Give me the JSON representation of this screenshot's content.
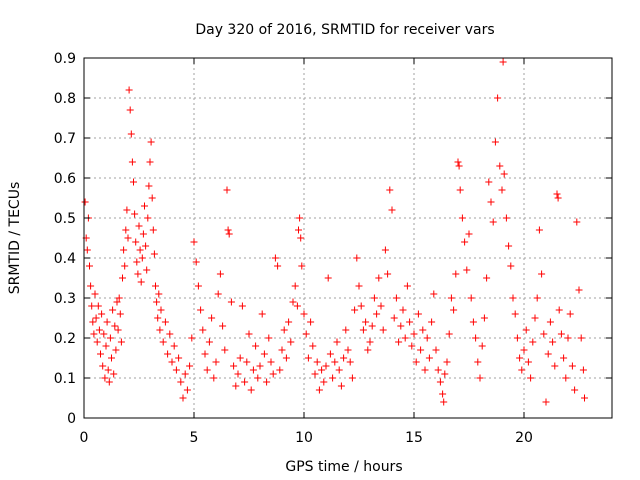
{
  "chart_data": {
    "type": "scatter",
    "title": "Day 320 of 2016, SRMTID for receiver vars",
    "xlabel": "GPS time / hours",
    "ylabel": "SRMTID / TECUs",
    "xlim": [
      0,
      24
    ],
    "ylim": [
      0,
      0.9
    ],
    "x_ticks": [
      0,
      5,
      10,
      15,
      20
    ],
    "x_tick_labels": [
      "0",
      "5",
      "10",
      "15",
      "20"
    ],
    "y_ticks": [
      0,
      0.1,
      0.2,
      0.3,
      0.4,
      0.5,
      0.6,
      0.7,
      0.8,
      0.9
    ],
    "y_tick_labels": [
      "0",
      "0.1",
      "0.2",
      "0.3",
      "0.4",
      "0.5",
      "0.6",
      "0.7",
      "0.8",
      "0.9"
    ],
    "grid": true,
    "series": [
      {
        "name": "SRMTID",
        "marker": "+",
        "color": "#ff0000",
        "points": [
          [
            0.05,
            0.54
          ],
          [
            0.1,
            0.45
          ],
          [
            0.15,
            0.42
          ],
          [
            0.2,
            0.5
          ],
          [
            0.25,
            0.38
          ],
          [
            0.3,
            0.33
          ],
          [
            0.35,
            0.28
          ],
          [
            0.4,
            0.24
          ],
          [
            0.45,
            0.21
          ],
          [
            0.5,
            0.31
          ],
          [
            0.55,
            0.25
          ],
          [
            0.6,
            0.19
          ],
          [
            0.65,
            0.28
          ],
          [
            0.7,
            0.22
          ],
          [
            0.75,
            0.16
          ],
          [
            0.8,
            0.26
          ],
          [
            0.85,
            0.13
          ],
          [
            0.9,
            0.21
          ],
          [
            0.95,
            0.1
          ],
          [
            1.0,
            0.18
          ],
          [
            1.05,
            0.24
          ],
          [
            1.1,
            0.12
          ],
          [
            1.15,
            0.09
          ],
          [
            1.2,
            0.2
          ],
          [
            1.25,
            0.15
          ],
          [
            1.3,
            0.27
          ],
          [
            1.35,
            0.11
          ],
          [
            1.4,
            0.23
          ],
          [
            1.45,
            0.17
          ],
          [
            1.5,
            0.29
          ],
          [
            1.55,
            0.22
          ],
          [
            1.6,
            0.3
          ],
          [
            1.65,
            0.26
          ],
          [
            1.7,
            0.19
          ],
          [
            1.75,
            0.35
          ],
          [
            1.8,
            0.42
          ],
          [
            1.85,
            0.38
          ],
          [
            1.9,
            0.47
          ],
          [
            1.95,
            0.52
          ],
          [
            2.0,
            0.45
          ],
          [
            2.05,
            0.82
          ],
          [
            2.1,
            0.77
          ],
          [
            2.15,
            0.71
          ],
          [
            2.2,
            0.64
          ],
          [
            2.25,
            0.59
          ],
          [
            2.3,
            0.51
          ],
          [
            2.35,
            0.44
          ],
          [
            2.4,
            0.39
          ],
          [
            2.45,
            0.36
          ],
          [
            2.5,
            0.48
          ],
          [
            2.55,
            0.42
          ],
          [
            2.6,
            0.34
          ],
          [
            2.65,
            0.4
          ],
          [
            2.7,
            0.46
          ],
          [
            2.75,
            0.53
          ],
          [
            2.8,
            0.43
          ],
          [
            2.85,
            0.37
          ],
          [
            2.9,
            0.5
          ],
          [
            2.95,
            0.58
          ],
          [
            3.0,
            0.64
          ],
          [
            3.05,
            0.69
          ],
          [
            3.1,
            0.55
          ],
          [
            3.15,
            0.47
          ],
          [
            3.2,
            0.41
          ],
          [
            3.25,
            0.33
          ],
          [
            3.3,
            0.29
          ],
          [
            3.35,
            0.25
          ],
          [
            3.4,
            0.31
          ],
          [
            3.45,
            0.22
          ],
          [
            3.5,
            0.27
          ],
          [
            3.6,
            0.19
          ],
          [
            3.7,
            0.24
          ],
          [
            3.8,
            0.16
          ],
          [
            3.9,
            0.21
          ],
          [
            4.0,
            0.14
          ],
          [
            4.1,
            0.18
          ],
          [
            4.2,
            0.12
          ],
          [
            4.3,
            0.15
          ],
          [
            4.4,
            0.09
          ],
          [
            4.5,
            0.05
          ],
          [
            4.6,
            0.11
          ],
          [
            4.7,
            0.07
          ],
          [
            4.8,
            0.13
          ],
          [
            4.9,
            0.2
          ],
          [
            5.0,
            0.44
          ],
          [
            5.1,
            0.39
          ],
          [
            5.2,
            0.33
          ],
          [
            5.3,
            0.27
          ],
          [
            5.4,
            0.22
          ],
          [
            5.5,
            0.16
          ],
          [
            5.6,
            0.12
          ],
          [
            5.7,
            0.19
          ],
          [
            5.8,
            0.25
          ],
          [
            5.9,
            0.1
          ],
          [
            6.0,
            0.14
          ],
          [
            6.1,
            0.31
          ],
          [
            6.2,
            0.36
          ],
          [
            6.3,
            0.23
          ],
          [
            6.4,
            0.17
          ],
          [
            6.5,
            0.57
          ],
          [
            6.55,
            0.47
          ],
          [
            6.6,
            0.46
          ],
          [
            6.7,
            0.29
          ],
          [
            6.8,
            0.13
          ],
          [
            6.9,
            0.08
          ],
          [
            7.0,
            0.11
          ],
          [
            7.1,
            0.15
          ],
          [
            7.2,
            0.28
          ],
          [
            7.3,
            0.09
          ],
          [
            7.4,
            0.14
          ],
          [
            7.5,
            0.21
          ],
          [
            7.6,
            0.07
          ],
          [
            7.7,
            0.12
          ],
          [
            7.8,
            0.18
          ],
          [
            7.9,
            0.1
          ],
          [
            8.0,
            0.13
          ],
          [
            8.1,
            0.26
          ],
          [
            8.2,
            0.16
          ],
          [
            8.3,
            0.09
          ],
          [
            8.4,
            0.2
          ],
          [
            8.5,
            0.14
          ],
          [
            8.6,
            0.11
          ],
          [
            8.7,
            0.4
          ],
          [
            8.8,
            0.38
          ],
          [
            8.9,
            0.12
          ],
          [
            9.0,
            0.17
          ],
          [
            9.1,
            0.22
          ],
          [
            9.2,
            0.15
          ],
          [
            9.3,
            0.24
          ],
          [
            9.4,
            0.19
          ],
          [
            9.5,
            0.29
          ],
          [
            9.6,
            0.33
          ],
          [
            9.7,
            0.28
          ],
          [
            9.75,
            0.47
          ],
          [
            9.8,
            0.5
          ],
          [
            9.85,
            0.45
          ],
          [
            9.9,
            0.38
          ],
          [
            10.0,
            0.26
          ],
          [
            10.1,
            0.21
          ],
          [
            10.2,
            0.15
          ],
          [
            10.3,
            0.24
          ],
          [
            10.4,
            0.18
          ],
          [
            10.5,
            0.11
          ],
          [
            10.6,
            0.14
          ],
          [
            10.7,
            0.07
          ],
          [
            10.8,
            0.12
          ],
          [
            10.9,
            0.09
          ],
          [
            11.0,
            0.13
          ],
          [
            11.1,
            0.35
          ],
          [
            11.2,
            0.16
          ],
          [
            11.3,
            0.1
          ],
          [
            11.4,
            0.14
          ],
          [
            11.5,
            0.19
          ],
          [
            11.6,
            0.12
          ],
          [
            11.7,
            0.08
          ],
          [
            11.8,
            0.15
          ],
          [
            11.9,
            0.22
          ],
          [
            12.0,
            0.17
          ],
          [
            12.1,
            0.14
          ],
          [
            12.2,
            0.1
          ],
          [
            12.3,
            0.27
          ],
          [
            12.4,
            0.4
          ],
          [
            12.5,
            0.33
          ],
          [
            12.6,
            0.28
          ],
          [
            12.7,
            0.22
          ],
          [
            12.8,
            0.24
          ],
          [
            12.9,
            0.17
          ],
          [
            13.0,
            0.19
          ],
          [
            13.1,
            0.23
          ],
          [
            13.2,
            0.3
          ],
          [
            13.3,
            0.26
          ],
          [
            13.4,
            0.35
          ],
          [
            13.5,
            0.28
          ],
          [
            13.6,
            0.22
          ],
          [
            13.7,
            0.42
          ],
          [
            13.8,
            0.36
          ],
          [
            13.9,
            0.57
          ],
          [
            14.0,
            0.52
          ],
          [
            14.1,
            0.25
          ],
          [
            14.2,
            0.3
          ],
          [
            14.3,
            0.19
          ],
          [
            14.4,
            0.23
          ],
          [
            14.5,
            0.27
          ],
          [
            14.6,
            0.2
          ],
          [
            14.7,
            0.33
          ],
          [
            14.8,
            0.24
          ],
          [
            14.9,
            0.18
          ],
          [
            15.0,
            0.21
          ],
          [
            15.1,
            0.14
          ],
          [
            15.2,
            0.26
          ],
          [
            15.3,
            0.17
          ],
          [
            15.4,
            0.22
          ],
          [
            15.5,
            0.12
          ],
          [
            15.6,
            0.2
          ],
          [
            15.7,
            0.15
          ],
          [
            15.8,
            0.24
          ],
          [
            15.9,
            0.31
          ],
          [
            16.0,
            0.17
          ],
          [
            16.1,
            0.12
          ],
          [
            16.2,
            0.09
          ],
          [
            16.3,
            0.06
          ],
          [
            16.35,
            0.04
          ],
          [
            16.4,
            0.11
          ],
          [
            16.5,
            0.14
          ],
          [
            16.6,
            0.21
          ],
          [
            16.7,
            0.3
          ],
          [
            16.8,
            0.27
          ],
          [
            16.9,
            0.36
          ],
          [
            17.0,
            0.64
          ],
          [
            17.05,
            0.63
          ],
          [
            17.1,
            0.57
          ],
          [
            17.2,
            0.5
          ],
          [
            17.3,
            0.44
          ],
          [
            17.4,
            0.37
          ],
          [
            17.5,
            0.46
          ],
          [
            17.6,
            0.3
          ],
          [
            17.7,
            0.24
          ],
          [
            17.8,
            0.2
          ],
          [
            17.9,
            0.14
          ],
          [
            18.0,
            0.1
          ],
          [
            18.1,
            0.18
          ],
          [
            18.2,
            0.25
          ],
          [
            18.3,
            0.35
          ],
          [
            18.4,
            0.59
          ],
          [
            18.5,
            0.54
          ],
          [
            18.6,
            0.49
          ],
          [
            18.7,
            0.69
          ],
          [
            18.8,
            0.8
          ],
          [
            18.9,
            0.63
          ],
          [
            19.0,
            0.57
          ],
          [
            19.05,
            0.89
          ],
          [
            19.1,
            0.61
          ],
          [
            19.2,
            0.5
          ],
          [
            19.3,
            0.43
          ],
          [
            19.4,
            0.38
          ],
          [
            19.5,
            0.3
          ],
          [
            19.6,
            0.26
          ],
          [
            19.7,
            0.2
          ],
          [
            19.8,
            0.15
          ],
          [
            19.9,
            0.12
          ],
          [
            20.0,
            0.17
          ],
          [
            20.1,
            0.22
          ],
          [
            20.2,
            0.14
          ],
          [
            20.3,
            0.1
          ],
          [
            20.4,
            0.19
          ],
          [
            20.5,
            0.25
          ],
          [
            20.6,
            0.3
          ],
          [
            20.7,
            0.47
          ],
          [
            20.8,
            0.36
          ],
          [
            20.9,
            0.21
          ],
          [
            21.0,
            0.04
          ],
          [
            21.1,
            0.16
          ],
          [
            21.2,
            0.24
          ],
          [
            21.3,
            0.19
          ],
          [
            21.4,
            0.13
          ],
          [
            21.5,
            0.56
          ],
          [
            21.55,
            0.55
          ],
          [
            21.6,
            0.27
          ],
          [
            21.7,
            0.21
          ],
          [
            21.8,
            0.15
          ],
          [
            21.9,
            0.1
          ],
          [
            22.0,
            0.2
          ],
          [
            22.1,
            0.26
          ],
          [
            22.2,
            0.13
          ],
          [
            22.3,
            0.07
          ],
          [
            22.4,
            0.49
          ],
          [
            22.5,
            0.32
          ],
          [
            22.6,
            0.2
          ],
          [
            22.7,
            0.12
          ],
          [
            22.75,
            0.05
          ]
        ]
      }
    ]
  }
}
